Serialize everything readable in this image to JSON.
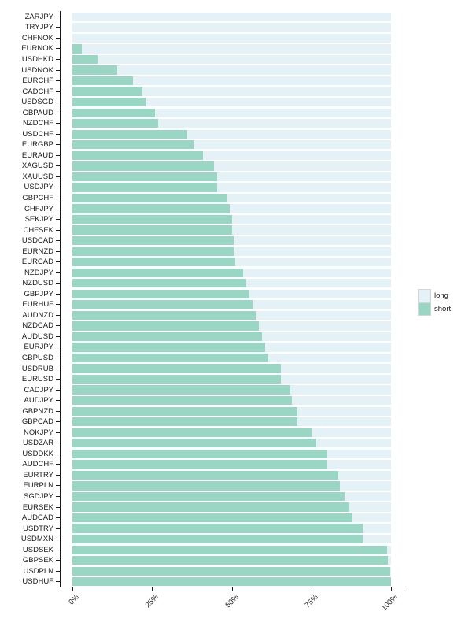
{
  "chart_data": {
    "type": "bar",
    "orientation": "horizontal",
    "stacked": true,
    "title": "",
    "xlabel": "",
    "ylabel": "",
    "xlim": [
      0,
      100
    ],
    "grid": false,
    "legend_position": "right",
    "categories": [
      "ZARJPY",
      "TRYJPY",
      "CHFNOK",
      "EURNOK",
      "USDHKD",
      "USDNOK",
      "EURCHF",
      "CADCHF",
      "USDSGD",
      "GBPAUD",
      "NZDCHF",
      "USDCHF",
      "EURGBP",
      "EURAUD",
      "XAGUSD",
      "XAUUSD",
      "USDJPY",
      "GBPCHF",
      "CHFJPY",
      "SEKJPY",
      "CHFSEK",
      "USDCAD",
      "EURNZD",
      "EURCAD",
      "NZDJPY",
      "NZDUSD",
      "GBPJPY",
      "EURHUF",
      "AUDNZD",
      "NZDCAD",
      "AUDUSD",
      "EURJPY",
      "GBPUSD",
      "USDRUB",
      "EURUSD",
      "CADJPY",
      "AUDJPY",
      "GBPNZD",
      "GBPCAD",
      "NOKJPY",
      "USDZAR",
      "USDDKK",
      "AUDCHF",
      "EURTRY",
      "EURPLN",
      "SGDJPY",
      "EURSEK",
      "AUDCAD",
      "USDTRY",
      "USDMXN",
      "USDSEK",
      "GBPSEK",
      "USDPLN",
      "USDHUF"
    ],
    "series": [
      {
        "name": "short",
        "color": "#9AD6C4",
        "values": [
          0,
          0,
          0,
          3,
          8,
          14,
          19,
          22,
          23,
          26,
          27,
          36,
          38,
          41,
          44.5,
          45.5,
          45.5,
          48.5,
          49.5,
          50,
          50,
          50.5,
          50.5,
          51,
          53.5,
          54.5,
          55.5,
          56.5,
          57.5,
          58.5,
          59.5,
          60.5,
          61.5,
          65.5,
          65.5,
          68.5,
          69,
          70.5,
          70.5,
          75,
          76.5,
          80,
          80,
          83.5,
          84,
          85.5,
          87,
          88,
          91,
          91,
          98.8,
          99,
          99.7,
          100
        ]
      },
      {
        "name": "long",
        "color": "#E4F2F8",
        "values": [
          100,
          100,
          100,
          97,
          92,
          86,
          81,
          78,
          77,
          74,
          73,
          64,
          62,
          59,
          55.5,
          54.5,
          54.5,
          51.5,
          50.5,
          50,
          50,
          49.5,
          49.5,
          49,
          46.5,
          45.5,
          44.5,
          43.5,
          42.5,
          41.5,
          40.5,
          39.5,
          38.5,
          34.5,
          34.5,
          31.5,
          31,
          29.5,
          29.5,
          25,
          23.5,
          20,
          20,
          16.5,
          16,
          14.5,
          13,
          12,
          9,
          9,
          1.2,
          1,
          0.3,
          0
        ]
      }
    ],
    "x_axis": {
      "tick_labels": [
        "0%",
        "25%",
        "50%",
        "75%",
        "100%"
      ],
      "tick_values": [
        0,
        25,
        50,
        75,
        100
      ]
    }
  },
  "legend": {
    "items": [
      {
        "label": "long",
        "color": "#E4F2F8"
      },
      {
        "label": "short",
        "color": "#9AD6C4"
      }
    ]
  },
  "colors": {
    "axis": "#1a1a1a",
    "background": "#ffffff"
  }
}
